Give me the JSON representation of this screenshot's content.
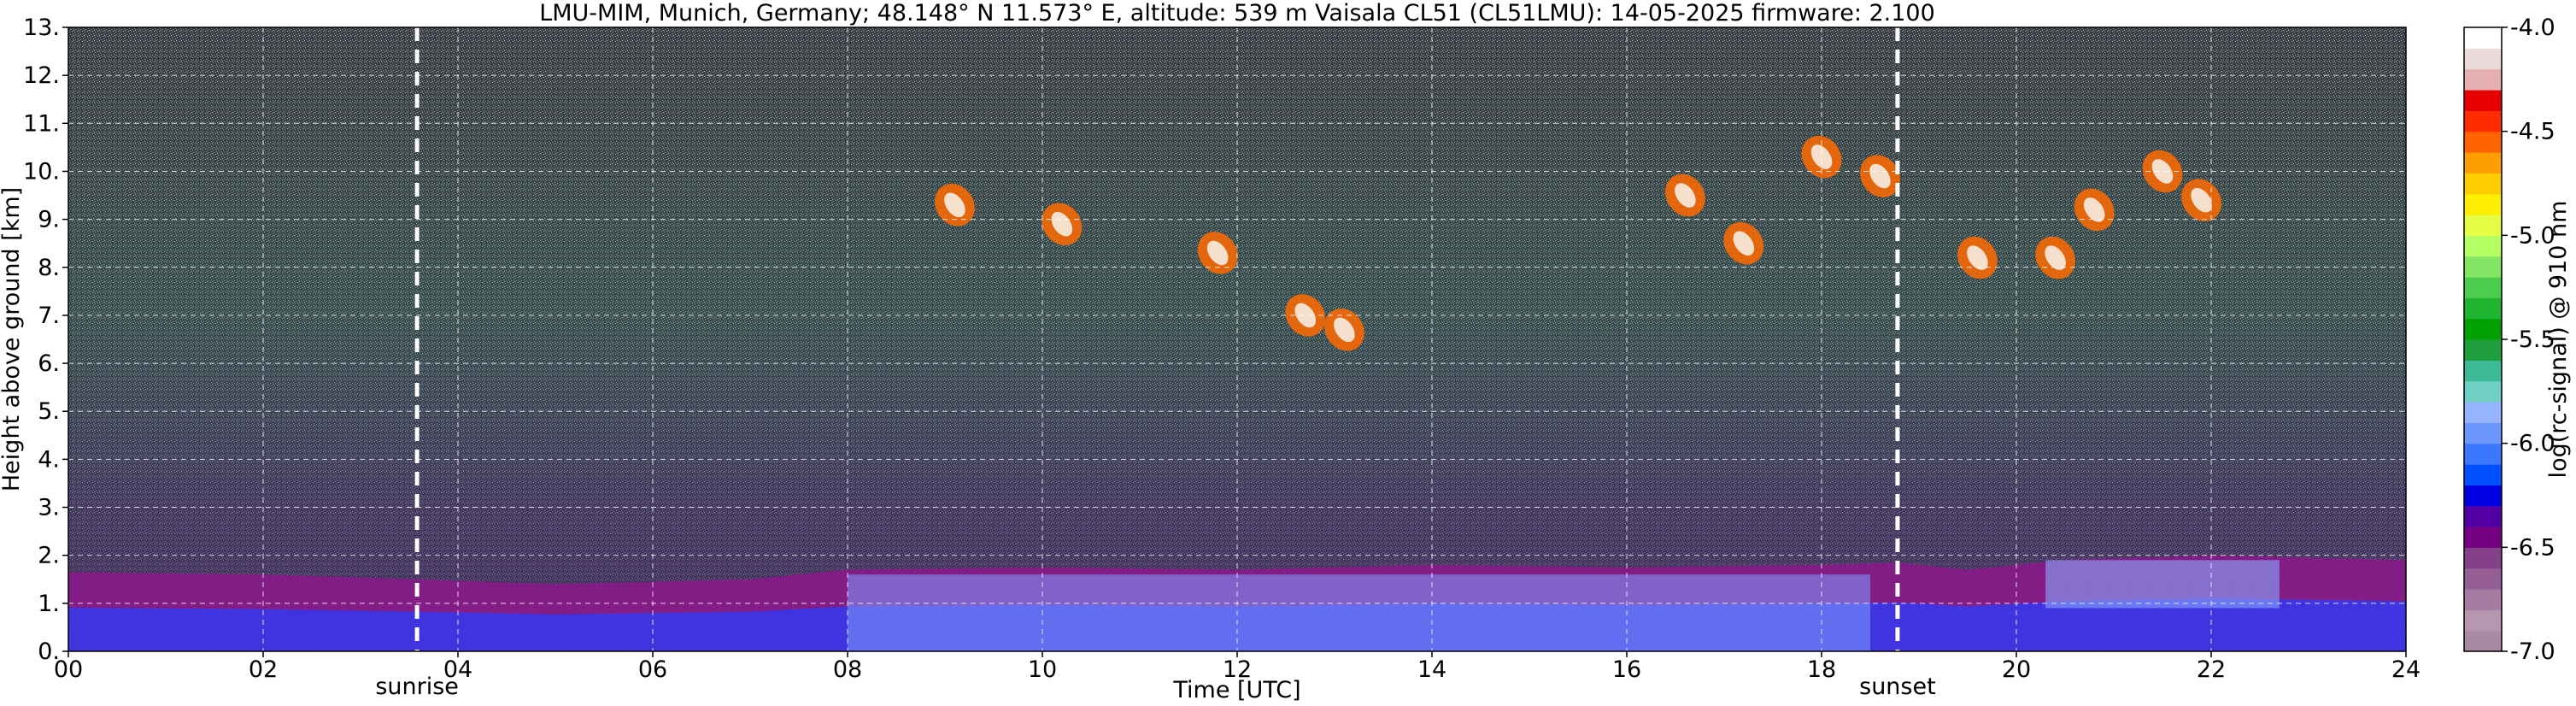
{
  "chart_data": {
    "type": "heatmap",
    "title": "LMU-MIM, Munich, Germany; 48.148° N 11.573° E, altitude: 539 m    Vaisala CL51 (CL51LMU): 14-05-2025    firmware: 2.100",
    "xlabel": "Time [UTC]",
    "ylabel": "Height above ground [km]",
    "x_range": [
      0,
      24
    ],
    "y_range": [
      0,
      13
    ],
    "x_ticks": [
      "00",
      "02",
      "04",
      "06",
      "08",
      "10",
      "12",
      "14",
      "16",
      "18",
      "20",
      "22",
      "24"
    ],
    "y_ticks": [
      "0.",
      "1.",
      "2.",
      "3.",
      "4.",
      "5.",
      "6.",
      "7.",
      "8.",
      "9.",
      "10.",
      "11.",
      "12.",
      "13."
    ],
    "grid": true,
    "colorbar": {
      "label": "log(rc-signal) @ 910 nm",
      "range": [
        -7.0,
        -4.0
      ],
      "ticks": [
        "-4.0",
        "-4.5",
        "-5.0",
        "-5.5",
        "-6.0",
        "-6.5",
        "-7.0"
      ],
      "colors": [
        "#a98aa3",
        "#b797b0",
        "#a67ba1",
        "#955f95",
        "#84418a",
        "#760082",
        "#5200a6",
        "#0000e0",
        "#0050ff",
        "#3c78ff",
        "#6e96ff",
        "#96b4ff",
        "#6fcfc2",
        "#3cba96",
        "#1e9e3c",
        "#00a000",
        "#20b530",
        "#4ccc4c",
        "#82e664",
        "#b4ff64",
        "#e6ff46",
        "#ffee00",
        "#ffcc00",
        "#ff9e00",
        "#ff6400",
        "#ff2d00",
        "#e60000",
        "#e6b0b0",
        "#ecd9d9",
        "#ffffff"
      ]
    },
    "markers": [
      {
        "label": "sunrise",
        "x": 3.58
      },
      {
        "label": "sunset",
        "x": 18.78
      }
    ],
    "features": {
      "boundary_layer_top_km": {
        "x": [
          0,
          2,
          3.58,
          5,
          7,
          8,
          10,
          12,
          14,
          16,
          18,
          18.78,
          19.5,
          20.5,
          22,
          24
        ],
        "y": [
          1.65,
          1.6,
          1.5,
          1.4,
          1.5,
          1.7,
          1.75,
          1.7,
          1.8,
          1.75,
          1.8,
          1.85,
          1.7,
          1.9,
          2.0,
          1.9
        ]
      },
      "cirrus_clouds": [
        {
          "x": 9.1,
          "y": 9.3
        },
        {
          "x": 10.2,
          "y": 8.9
        },
        {
          "x": 11.8,
          "y": 8.3
        },
        {
          "x": 12.7,
          "y": 7.0
        },
        {
          "x": 13.1,
          "y": 6.7
        },
        {
          "x": 16.6,
          "y": 9.5
        },
        {
          "x": 17.2,
          "y": 8.5
        },
        {
          "x": 18.0,
          "y": 10.3
        },
        {
          "x": 18.6,
          "y": 9.9
        },
        {
          "x": 19.6,
          "y": 8.2
        },
        {
          "x": 20.4,
          "y": 8.2
        },
        {
          "x": 20.8,
          "y": 9.2
        },
        {
          "x": 21.5,
          "y": 10.0
        },
        {
          "x": 21.9,
          "y": 9.4
        }
      ]
    }
  }
}
